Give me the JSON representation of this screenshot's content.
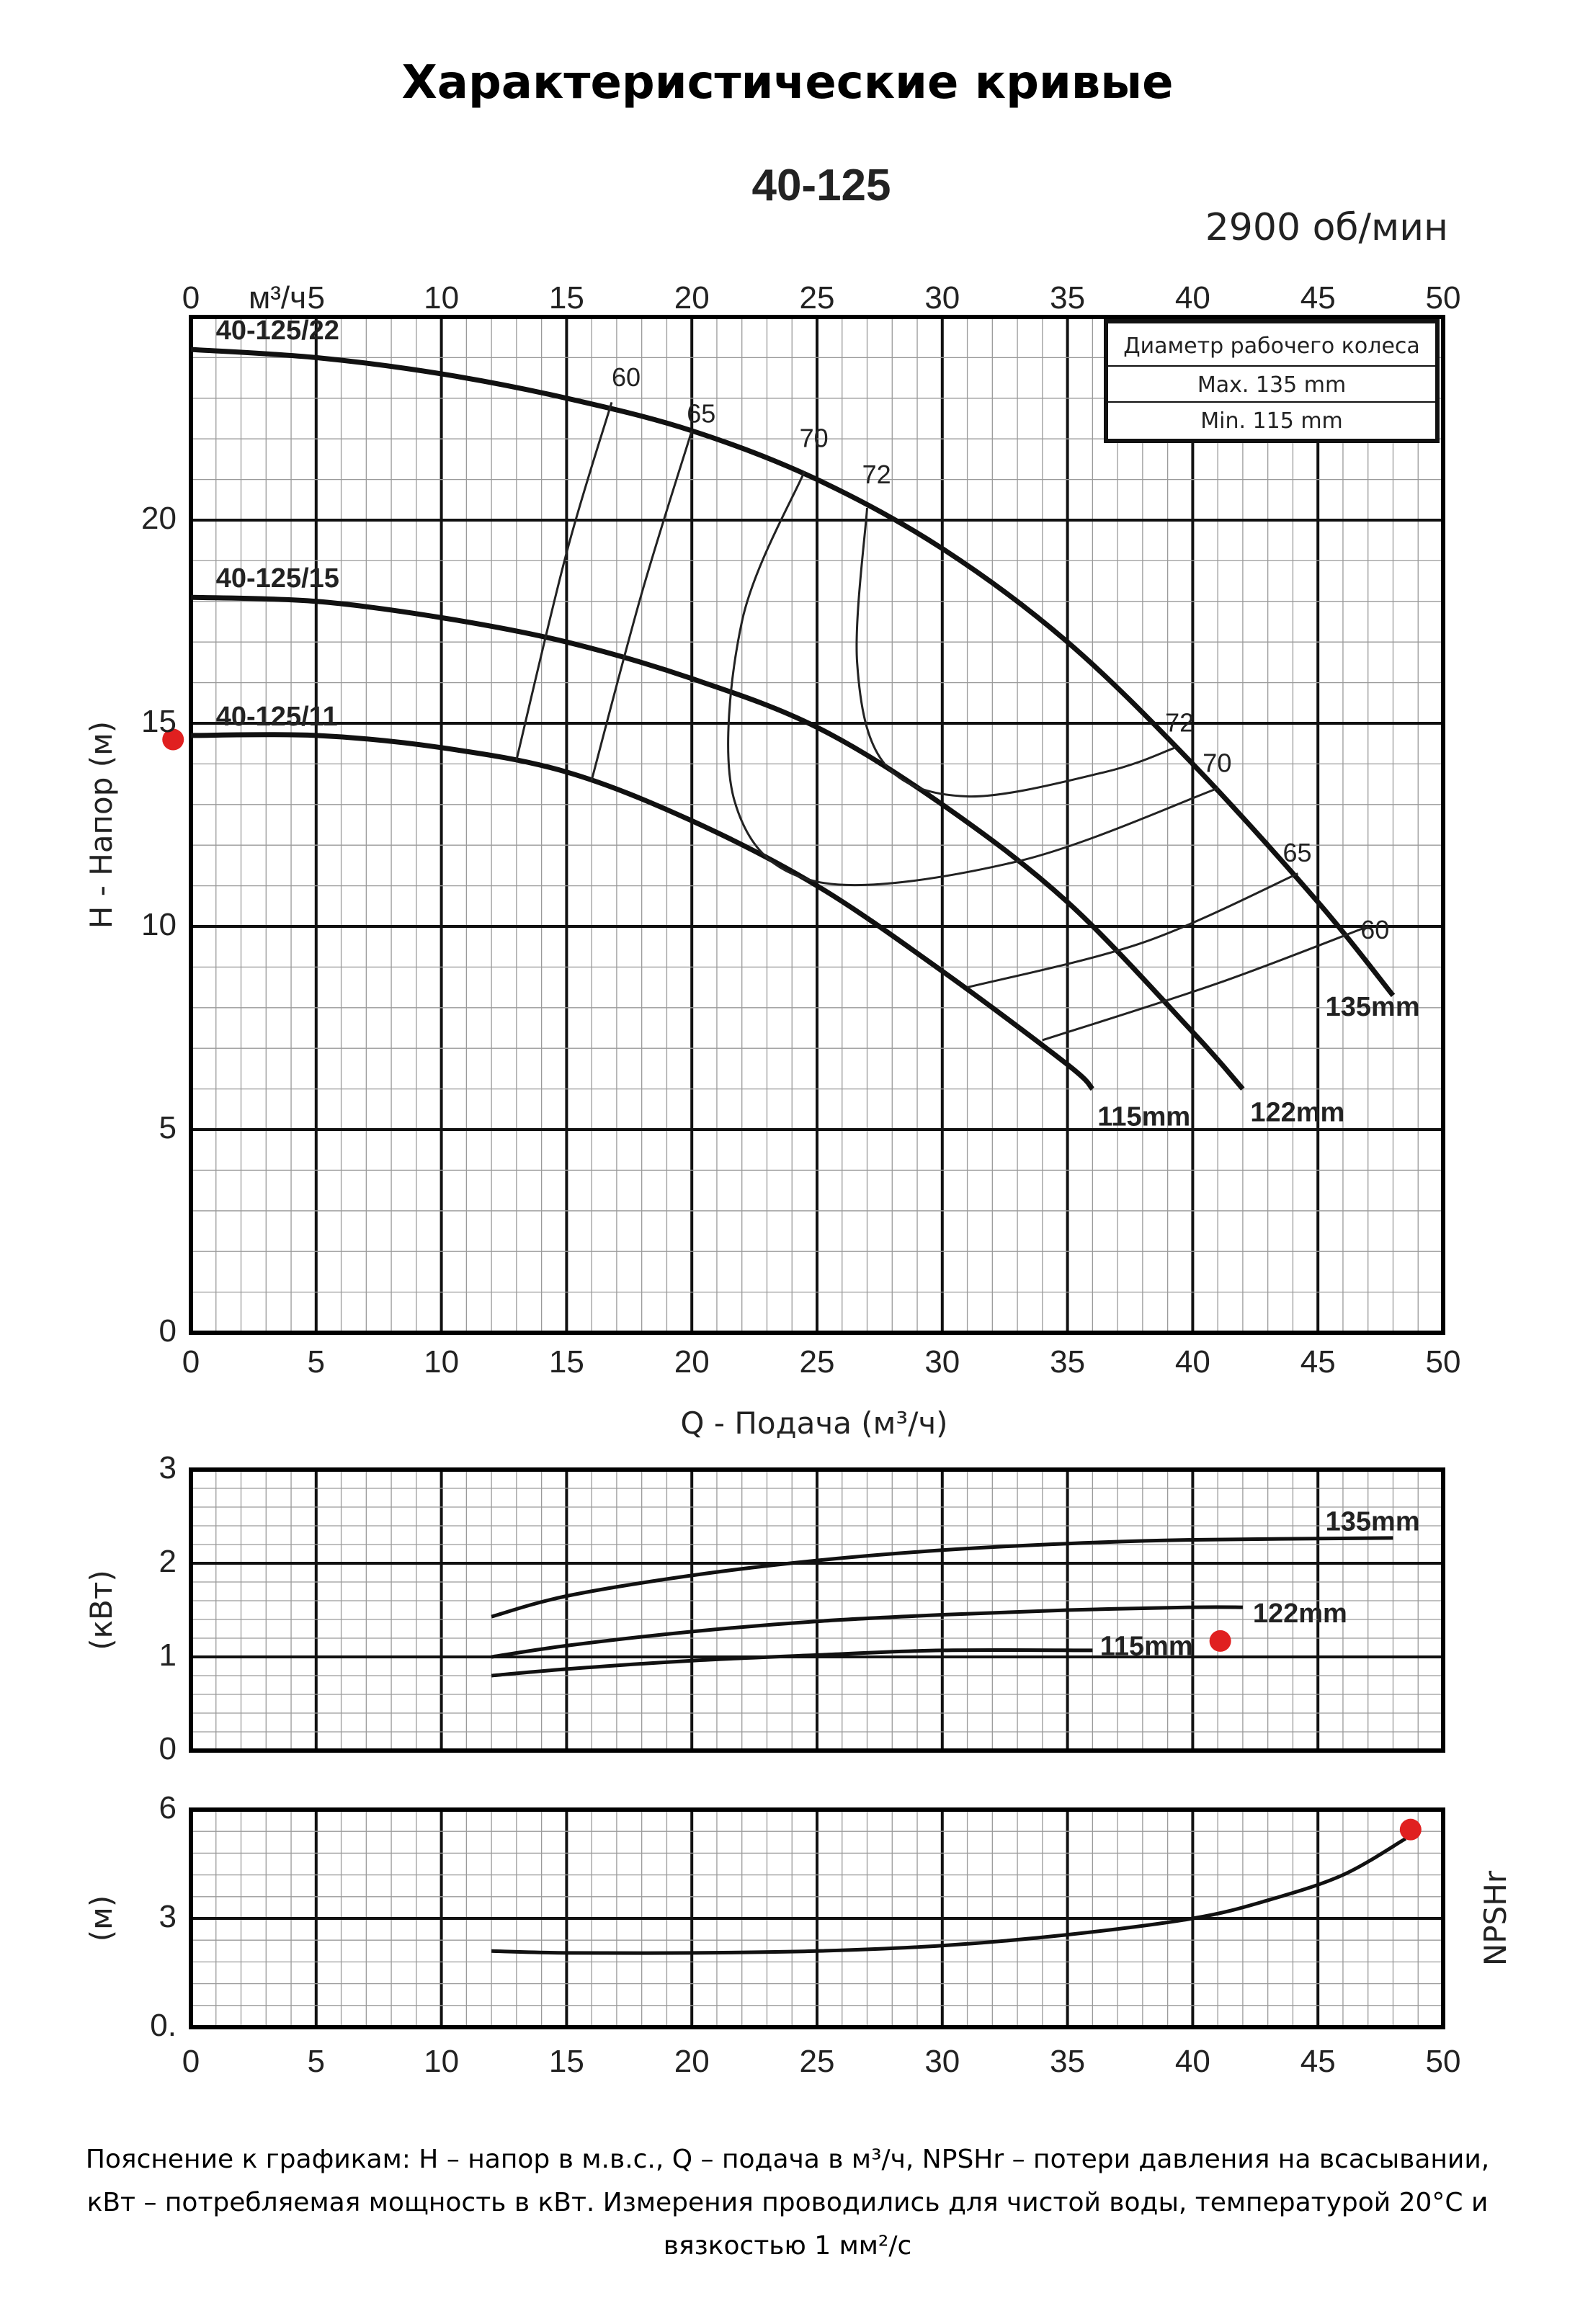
{
  "title": "Характеристические кривые",
  "notes": "Пояснение к графикам: H – напор в м.в.с., Q – подача в м³/ч, NPSHr – потери давления на всасывании, кВт – потребляемая мощность в кВт. Измерения проводились для чистой воды, температурой 20°C и вязкостью 1 мм²/с",
  "chart_data": [
    {
      "type": "line",
      "title": "40-125",
      "subtitle": "2900 об/мин",
      "xlabel": "Q - Подача (м³/ч)",
      "x_top_unit": "м³/ч",
      "ylabel": "H - Напор (м)",
      "xlim": [
        0,
        50
      ],
      "ylim": [
        0,
        25
      ],
      "x_ticks": [
        0,
        5,
        10,
        15,
        20,
        25,
        30,
        35,
        40,
        45,
        50
      ],
      "y_ticks": [
        0,
        5,
        10,
        15,
        20
      ],
      "grid": true,
      "impeller_box": {
        "title": "Диаметр рабочего колеса",
        "max": "Max.  135  mm",
        "min": "Min.   115  mm"
      },
      "series": [
        {
          "name": "135mm",
          "model": "40-125/22",
          "x": [
            0,
            5,
            10,
            15,
            20,
            25,
            30,
            35,
            40,
            45,
            48
          ],
          "y": [
            24.2,
            24.0,
            23.6,
            23.0,
            22.2,
            21.0,
            19.3,
            17.0,
            14.0,
            10.6,
            8.3
          ]
        },
        {
          "name": "122mm",
          "model": "40-125/15",
          "x": [
            0,
            5,
            10,
            15,
            20,
            25,
            30,
            35,
            40,
            42
          ],
          "y": [
            18.1,
            18.0,
            17.6,
            17.0,
            16.1,
            14.9,
            13.0,
            10.6,
            7.4,
            6.0
          ]
        },
        {
          "name": "115mm",
          "model": "40-125/11",
          "x": [
            0,
            5,
            10,
            15,
            20,
            25,
            30,
            35,
            36
          ],
          "y": [
            14.7,
            14.7,
            14.4,
            13.8,
            12.6,
            11.0,
            8.9,
            6.6,
            6.0
          ]
        }
      ],
      "efficiency_labels": [
        "60",
        "65",
        "70",
        "72"
      ],
      "marker": {
        "x": -1,
        "y": 14.6,
        "color": "#e02020"
      }
    },
    {
      "type": "line",
      "ylabel": "(кВт)",
      "xlim": [
        0,
        50
      ],
      "ylim": [
        0,
        3
      ],
      "y_ticks": [
        0,
        1,
        2,
        3
      ],
      "series": [
        {
          "name": "135mm",
          "x": [
            12,
            15,
            20,
            25,
            30,
            35,
            40,
            48
          ],
          "y": [
            1.43,
            1.65,
            1.87,
            2.03,
            2.14,
            2.21,
            2.25,
            2.27
          ]
        },
        {
          "name": "122mm",
          "x": [
            12,
            15,
            20,
            25,
            30,
            35,
            40,
            42
          ],
          "y": [
            1.0,
            1.12,
            1.27,
            1.38,
            1.45,
            1.5,
            1.53,
            1.53
          ]
        },
        {
          "name": "115mm",
          "x": [
            12,
            15,
            20,
            25,
            30,
            36
          ],
          "y": [
            0.8,
            0.87,
            0.96,
            1.02,
            1.07,
            1.07
          ]
        }
      ],
      "marker": {
        "x": 41.1,
        "y": 1.17,
        "color": "#e02020"
      }
    },
    {
      "type": "line",
      "ylabel": "(м)",
      "right_label": "NPSHr",
      "xlim": [
        0,
        50
      ],
      "ylim": [
        0,
        6
      ],
      "x_ticks": [
        0,
        5,
        10,
        15,
        20,
        25,
        30,
        35,
        40,
        45,
        50
      ],
      "y_ticks": [
        0,
        3,
        6
      ],
      "series": [
        {
          "name": "NPSHr",
          "x": [
            12,
            15,
            20,
            25,
            30,
            35,
            40,
            43,
            46,
            48.5
          ],
          "y": [
            2.1,
            2.05,
            2.05,
            2.1,
            2.25,
            2.55,
            3.0,
            3.5,
            4.2,
            5.2
          ]
        }
      ],
      "marker": {
        "x": 48.7,
        "y": 5.45,
        "color": "#e02020"
      }
    }
  ]
}
